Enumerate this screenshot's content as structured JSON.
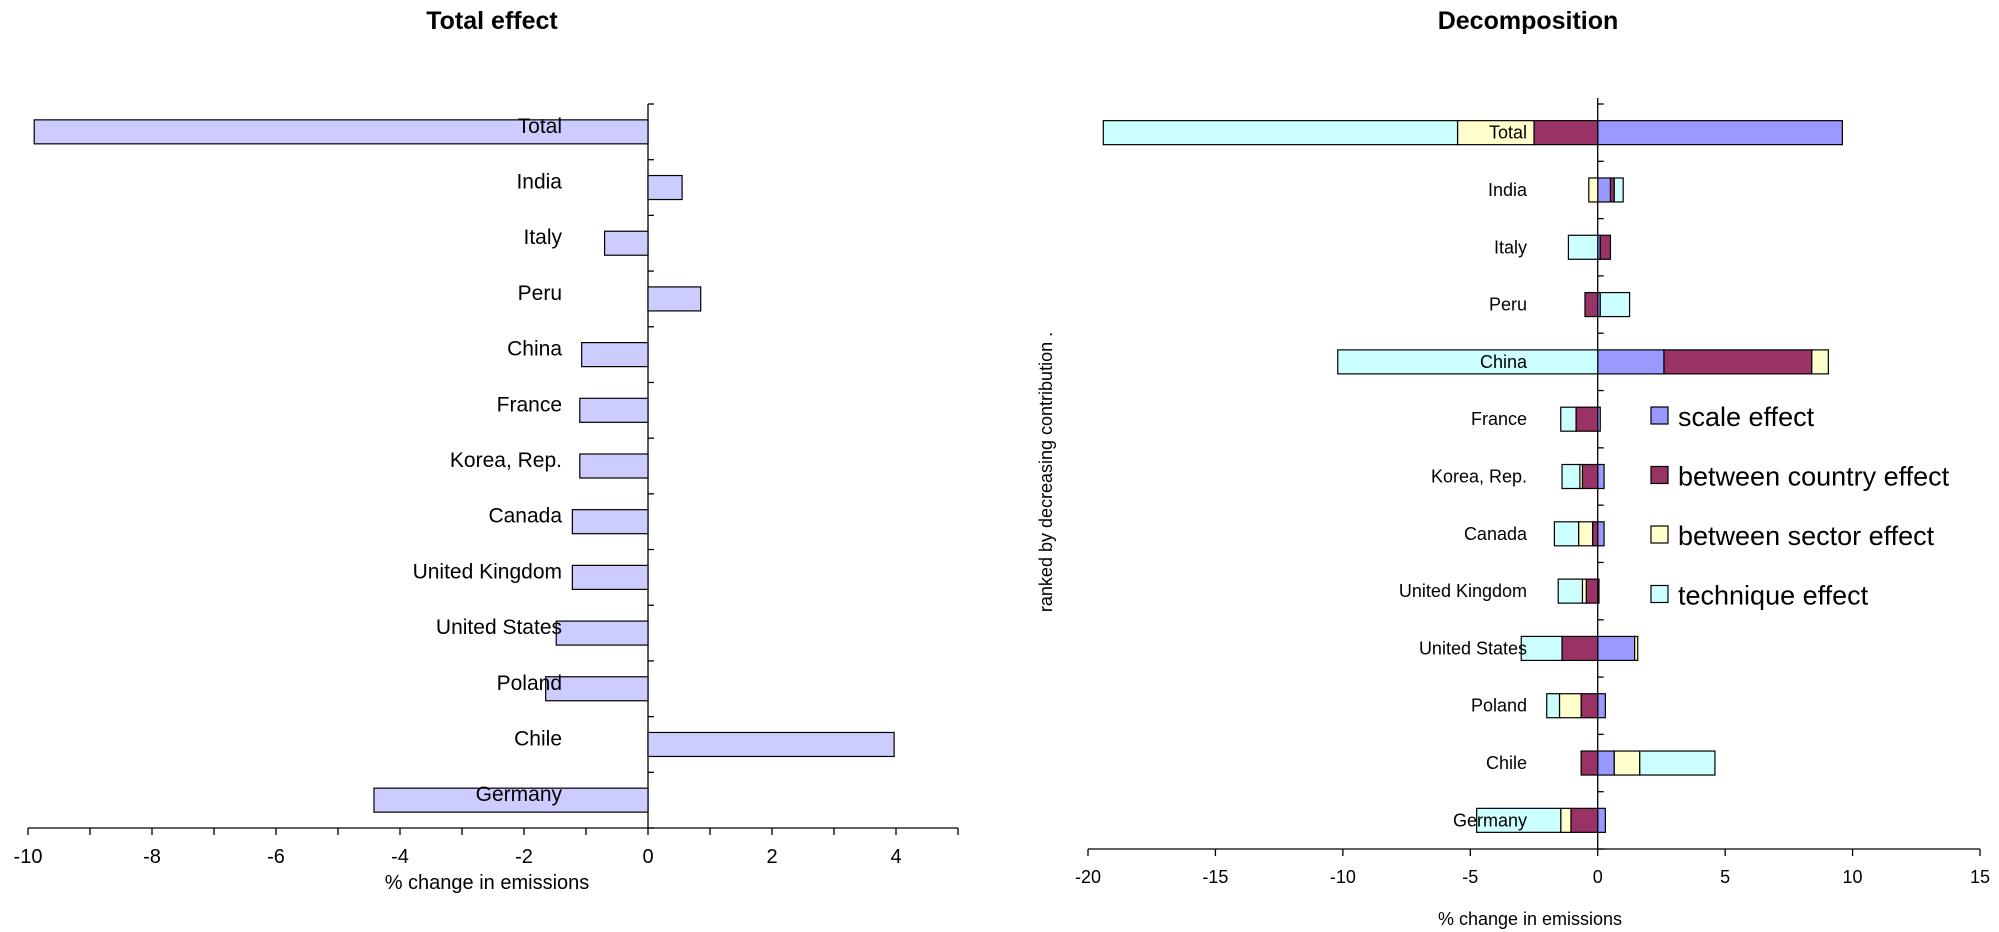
{
  "chart_data": [
    {
      "type": "bar",
      "orientation": "horizontal",
      "title": "Total effect",
      "xlabel": "% change in emissions",
      "ylabel": "",
      "xlim": [
        -10,
        5
      ],
      "xticks": [
        -10,
        -8,
        -6,
        -4,
        -2,
        0,
        2,
        4
      ],
      "categories": [
        "Total",
        "India",
        "Italy",
        "Peru",
        "China",
        "France",
        "Korea, Rep.",
        "Canada",
        "United Kingdom",
        "United States",
        "Poland",
        "Chile",
        "Germany"
      ],
      "values": [
        -9.9,
        0.55,
        -0.7,
        0.85,
        -1.07,
        -1.1,
        -1.1,
        -1.22,
        -1.22,
        -1.48,
        -1.65,
        3.97,
        -4.42
      ],
      "grid": false,
      "colors": {
        "bar": "#ccccff"
      }
    },
    {
      "type": "bar",
      "orientation": "horizontal",
      "stacked": true,
      "title": "Decomposition",
      "xlabel": "% change in emissions",
      "ylabel": "ranked by decreasing contribution .",
      "xlim": [
        -20,
        15
      ],
      "xticks": [
        -20,
        -15,
        -10,
        -5,
        0,
        5,
        10,
        15
      ],
      "categories": [
        "Total",
        "India",
        "Italy",
        "Peru",
        "China",
        "France",
        "Korea, Rep.",
        "Canada",
        "United Kingdom",
        "United States",
        "Poland",
        "Chile",
        "Germany"
      ],
      "legend_position": "right",
      "grid": false,
      "series": [
        {
          "name": "scale effect",
          "color": "#9999ff",
          "values": [
            9.6,
            0.5,
            0.1,
            0.1,
            2.6,
            0.1,
            0.25,
            0.25,
            0.05,
            1.45,
            0.3,
            0.65,
            0.3
          ]
        },
        {
          "name": "between country effect",
          "color": "#993366",
          "values": [
            -2.5,
            0.15,
            0.4,
            -0.5,
            5.8,
            -0.85,
            -0.6,
            -0.2,
            -0.45,
            -1.4,
            -0.65,
            -0.65,
            -1.05
          ]
        },
        {
          "name": "between sector effect",
          "color": "#ffffcc",
          "values": [
            -3.0,
            -0.35,
            0.0,
            0.0,
            0.65,
            0.0,
            -0.1,
            -0.55,
            -0.15,
            0.12,
            -0.85,
            1.0,
            -0.4
          ]
        },
        {
          "name": "technique effect",
          "color": "#ccffff",
          "values": [
            -13.9,
            0.35,
            -1.15,
            1.15,
            -10.2,
            -0.6,
            -0.7,
            -0.95,
            -0.95,
            -1.6,
            -0.5,
            2.95,
            -3.3
          ]
        }
      ]
    }
  ]
}
